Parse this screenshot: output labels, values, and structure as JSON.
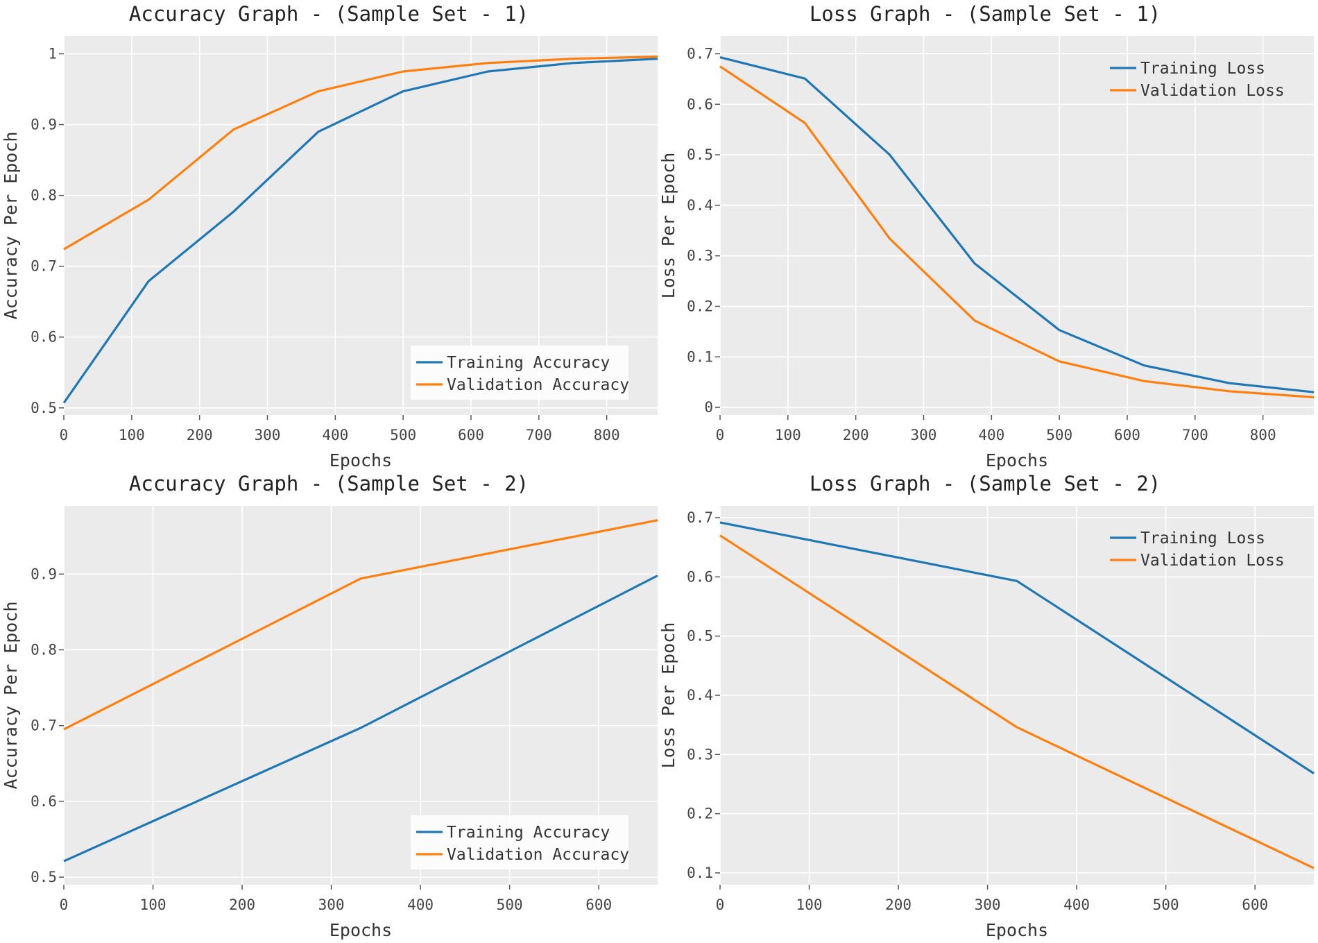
{
  "colors": {
    "training": "#1f77b4",
    "validation": "#ff7f0e",
    "panel": "#ebebeb",
    "grid": "#ffffff"
  },
  "chart_data": [
    {
      "type": "line",
      "title": "Accuracy Graph - (Sample Set - 1)",
      "xlabel": "Epochs",
      "ylabel": "Accuracy Per Epoch",
      "xlim": [
        0,
        875
      ],
      "ylim": [
        0.49,
        1.025
      ],
      "xticks": [
        0,
        100,
        200,
        300,
        400,
        500,
        600,
        700,
        800
      ],
      "xtick_labels": [
        "0",
        "100",
        "200",
        "300",
        "400",
        "500",
        "600",
        "700",
        "800"
      ],
      "yticks": [
        0.5,
        0.6,
        0.7,
        0.8,
        0.9,
        1
      ],
      "ytick_labels": [
        "0.5",
        "0.6",
        "0.7",
        "0.8",
        "0.9",
        "1"
      ],
      "legend_position": "bottom-right",
      "grid": true,
      "series": [
        {
          "name": "Training Accuracy",
          "color": "#1f77b4",
          "x": [
            0,
            125,
            250,
            375,
            500,
            625,
            750,
            875
          ],
          "y": [
            0.507,
            0.679,
            0.777,
            0.89,
            0.947,
            0.975,
            0.987,
            0.993
          ]
        },
        {
          "name": "Validation Accuracy",
          "color": "#ff7f0e",
          "x": [
            0,
            125,
            250,
            375,
            500,
            625,
            750,
            875
          ],
          "y": [
            0.724,
            0.794,
            0.893,
            0.947,
            0.975,
            0.987,
            0.993,
            0.996
          ]
        }
      ]
    },
    {
      "type": "line",
      "title": "Loss Graph - (Sample Set - 1)",
      "xlabel": "Epochs",
      "ylabel": "Loss Per Epoch",
      "xlim": [
        0,
        875
      ],
      "ylim": [
        -0.015,
        0.735
      ],
      "xticks": [
        0,
        100,
        200,
        300,
        400,
        500,
        600,
        700,
        800
      ],
      "xtick_labels": [
        "0",
        "100",
        "200",
        "300",
        "400",
        "500",
        "600",
        "700",
        "800"
      ],
      "yticks": [
        0,
        0.1,
        0.2,
        0.3,
        0.4,
        0.5,
        0.6,
        0.7
      ],
      "ytick_labels": [
        "0",
        "0.1",
        "0.2",
        "0.3",
        "0.4",
        "0.5",
        "0.6",
        "0.7"
      ],
      "legend_position": "top-right",
      "grid": true,
      "series": [
        {
          "name": "Training Loss",
          "color": "#1f77b4",
          "x": [
            0,
            125,
            250,
            375,
            500,
            625,
            750,
            875
          ],
          "y": [
            0.693,
            0.651,
            0.5,
            0.285,
            0.153,
            0.083,
            0.048,
            0.03
          ]
        },
        {
          "name": "Validation Loss",
          "color": "#ff7f0e",
          "x": [
            0,
            125,
            250,
            375,
            500,
            625,
            750,
            875
          ],
          "y": [
            0.675,
            0.563,
            0.334,
            0.172,
            0.091,
            0.052,
            0.032,
            0.02
          ]
        }
      ]
    },
    {
      "type": "line",
      "title": "Accuracy Graph - (Sample Set - 2)",
      "xlabel": "Epochs",
      "ylabel": "Accuracy Per Epoch",
      "xlim": [
        0,
        666
      ],
      "ylim": [
        0.49,
        0.99
      ],
      "xticks": [
        0,
        100,
        200,
        300,
        400,
        500,
        600
      ],
      "xtick_labels": [
        "0",
        "100",
        "200",
        "300",
        "400",
        "500",
        "600"
      ],
      "yticks": [
        0.5,
        0.6,
        0.7,
        0.8,
        0.9
      ],
      "ytick_labels": [
        "0.5",
        "0.6",
        "0.7",
        "0.8",
        "0.9"
      ],
      "legend_position": "bottom-right",
      "grid": true,
      "series": [
        {
          "name": "Training Accuracy",
          "color": "#1f77b4",
          "x": [
            0,
            333,
            666
          ],
          "y": [
            0.521,
            0.697,
            0.898
          ]
        },
        {
          "name": "Validation Accuracy",
          "color": "#ff7f0e",
          "x": [
            0,
            333,
            666
          ],
          "y": [
            0.695,
            0.894,
            0.971
          ]
        }
      ]
    },
    {
      "type": "line",
      "title": "Loss Graph - (Sample Set - 2)",
      "xlabel": "Epochs",
      "ylabel": "Loss Per Epoch",
      "xlim": [
        0,
        666
      ],
      "ylim": [
        0.08,
        0.72
      ],
      "xticks": [
        0,
        100,
        200,
        300,
        400,
        500,
        600
      ],
      "xtick_labels": [
        "0",
        "100",
        "200",
        "300",
        "400",
        "500",
        "600"
      ],
      "yticks": [
        0.1,
        0.2,
        0.3,
        0.4,
        0.5,
        0.6,
        0.7
      ],
      "ytick_labels": [
        "0.1",
        "0.2",
        "0.3",
        "0.4",
        "0.5",
        "0.6",
        "0.7"
      ],
      "legend_position": "top-right",
      "grid": true,
      "series": [
        {
          "name": "Training Loss",
          "color": "#1f77b4",
          "x": [
            0,
            333,
            666
          ],
          "y": [
            0.692,
            0.593,
            0.268
          ]
        },
        {
          "name": "Validation Loss",
          "color": "#ff7f0e",
          "x": [
            0,
            333,
            666
          ],
          "y": [
            0.67,
            0.346,
            0.108
          ]
        }
      ]
    }
  ]
}
